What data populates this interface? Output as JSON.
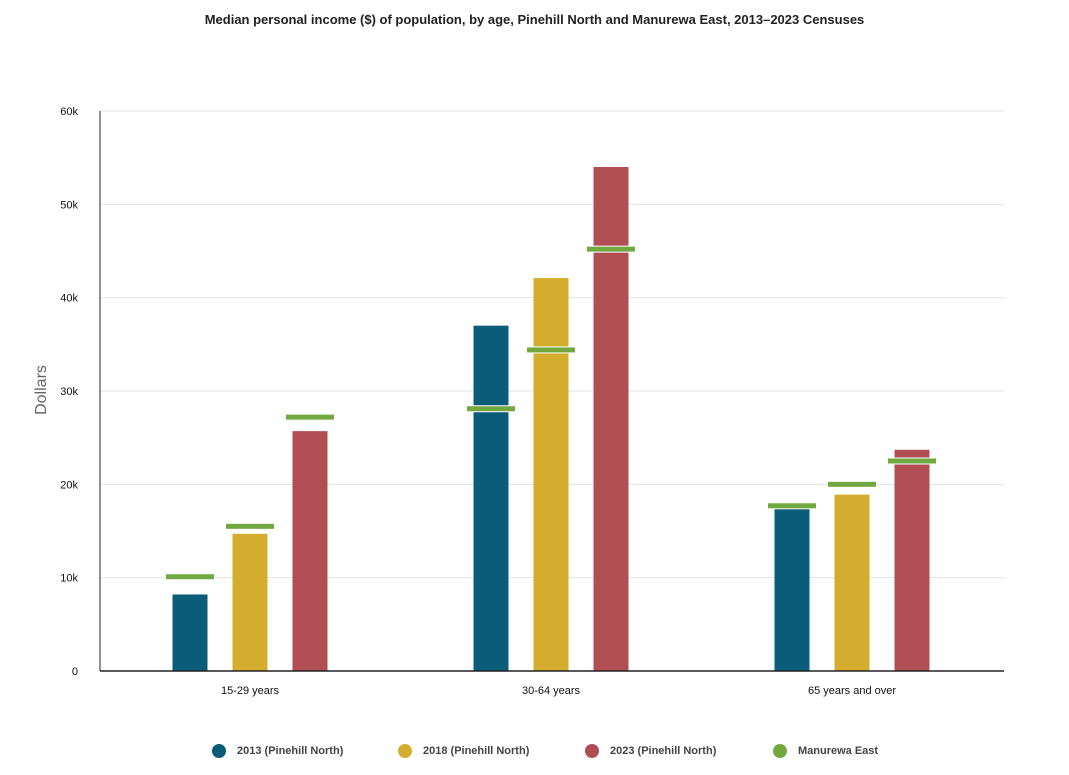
{
  "chart_data": {
    "type": "bar",
    "title": "Median personal income ($) of population, by age, Pinehill North and Manurewa East, 2013–2023 Censuses",
    "xlabel": "",
    "ylabel": "Dollars",
    "ylim": [
      0,
      60000
    ],
    "yticks": [
      0,
      10000,
      20000,
      30000,
      40000,
      50000,
      60000
    ],
    "ytick_labels": [
      "0",
      "10k",
      "20k",
      "30k",
      "40k",
      "50k",
      "60k"
    ],
    "categories": [
      "15-29 years",
      "30-64 years",
      "65 years and over"
    ],
    "series": [
      {
        "name": "2013 (Pinehill North)",
        "color": "#0a5c78",
        "values": [
          8200,
          37000,
          17400
        ]
      },
      {
        "name": "2018 (Pinehill North)",
        "color": "#d4ac2e",
        "values": [
          14700,
          42100,
          18900
        ]
      },
      {
        "name": "2023 (Pinehill North)",
        "color": "#b04e53",
        "values": [
          25700,
          54000,
          23700
        ]
      }
    ],
    "markers": {
      "name": "Manurewa East",
      "color": "#72a840",
      "values": [
        [
          10100,
          15500,
          27200
        ],
        [
          28100,
          34400,
          45200
        ],
        [
          17700,
          20000,
          22500
        ]
      ]
    },
    "grid": true,
    "legend_position": "bottom"
  }
}
